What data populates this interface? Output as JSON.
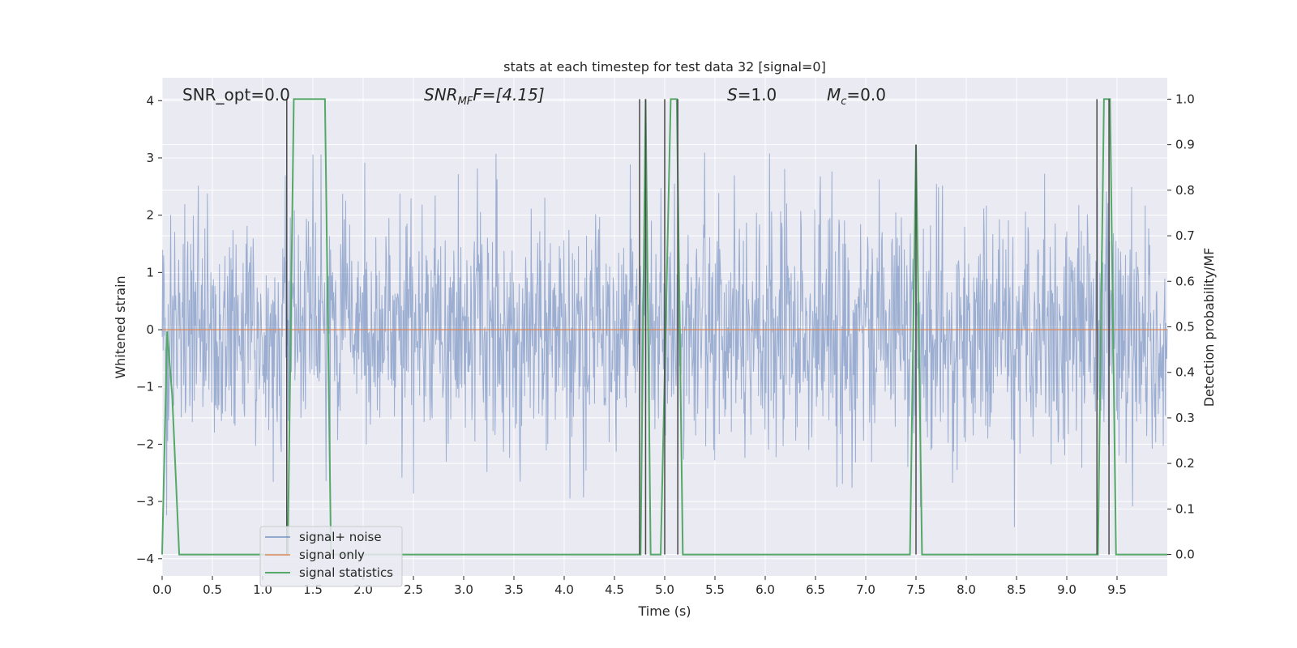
{
  "chart_data": {
    "type": "line",
    "title": "stats at each timestep for test data 32 [signal=0]",
    "xlabel": "Time (s)",
    "ylabel": "Whitened strain",
    "y2label": "Detection probability/MF",
    "xlim": [
      0.0,
      10.0
    ],
    "ylim": [
      -4.3,
      4.4
    ],
    "y2lim": [
      -0.047,
      1.047
    ],
    "xticks": [
      "0.0",
      "0.5",
      "1.0",
      "1.5",
      "2.0",
      "2.5",
      "3.0",
      "3.5",
      "4.0",
      "4.5",
      "5.0",
      "5.5",
      "6.0",
      "6.5",
      "7.0",
      "7.5",
      "8.0",
      "8.5",
      "9.0",
      "9.5"
    ],
    "yticks": [
      "4",
      "3",
      "2",
      "1",
      "0",
      "−1",
      "−2",
      "−3",
      "−4"
    ],
    "y2ticks": [
      "1.0",
      "0.9",
      "0.8",
      "0.7",
      "0.6",
      "0.5",
      "0.4",
      "0.3",
      "0.2",
      "0.1",
      "0.0"
    ],
    "grid": true,
    "annotations": {
      "snr_opt": "SNR_opt=0.0",
      "snr_mf_base": "SNR",
      "snr_mf_sub": "MF",
      "snr_mf_rest": "F=[4.15]",
      "s_var": "S",
      "s_rest": "=1.0",
      "mc_var": "M",
      "mc_sub": "c",
      "mc_rest": "=0.0"
    },
    "legend": {
      "placement": "lower-left",
      "entries": [
        "signal+ noise",
        "signal only",
        "signal statistics"
      ]
    },
    "series": [
      {
        "name": "signal+ noise",
        "axis": "left",
        "color": "#4c72b0",
        "description": "noise band",
        "envelope": {
          "mean": 0.0,
          "std": 1.0,
          "n_samples": 2000,
          "seed": 32
        }
      },
      {
        "name": "signal only",
        "axis": "left",
        "color": "#dd8452",
        "x": [
          0.0,
          10.0
        ],
        "values": [
          0.0,
          0.0
        ]
      },
      {
        "name": "signal statistics",
        "axis": "right",
        "color": "#55a868",
        "x": [
          0.0,
          0.05,
          0.1,
          0.17,
          1.25,
          1.31,
          1.62,
          1.68,
          4.76,
          4.81,
          4.86,
          4.96,
          5.06,
          5.12,
          5.18,
          5.24,
          7.44,
          7.5,
          7.56,
          9.31,
          9.37,
          9.43,
          9.49,
          9.55,
          10.0
        ],
        "values": [
          0.0,
          0.49,
          0.35,
          0.0,
          0.0,
          1.0,
          1.0,
          0.0,
          0.0,
          1.0,
          0.0,
          0.0,
          1.0,
          1.0,
          0.0,
          0.0,
          0.0,
          0.9,
          0.0,
          0.0,
          1.0,
          1.0,
          0.0,
          0.0,
          0.0
        ]
      },
      {
        "name": "markers",
        "axis": "right",
        "color": "#4a4a4a",
        "x": [
          1.24,
          4.75,
          4.81,
          5.0,
          5.13,
          7.5,
          9.3,
          9.42
        ],
        "values": [
          1.0,
          1.0,
          1.0,
          1.0,
          1.0,
          0.9,
          1.0,
          1.0
        ]
      }
    ]
  }
}
